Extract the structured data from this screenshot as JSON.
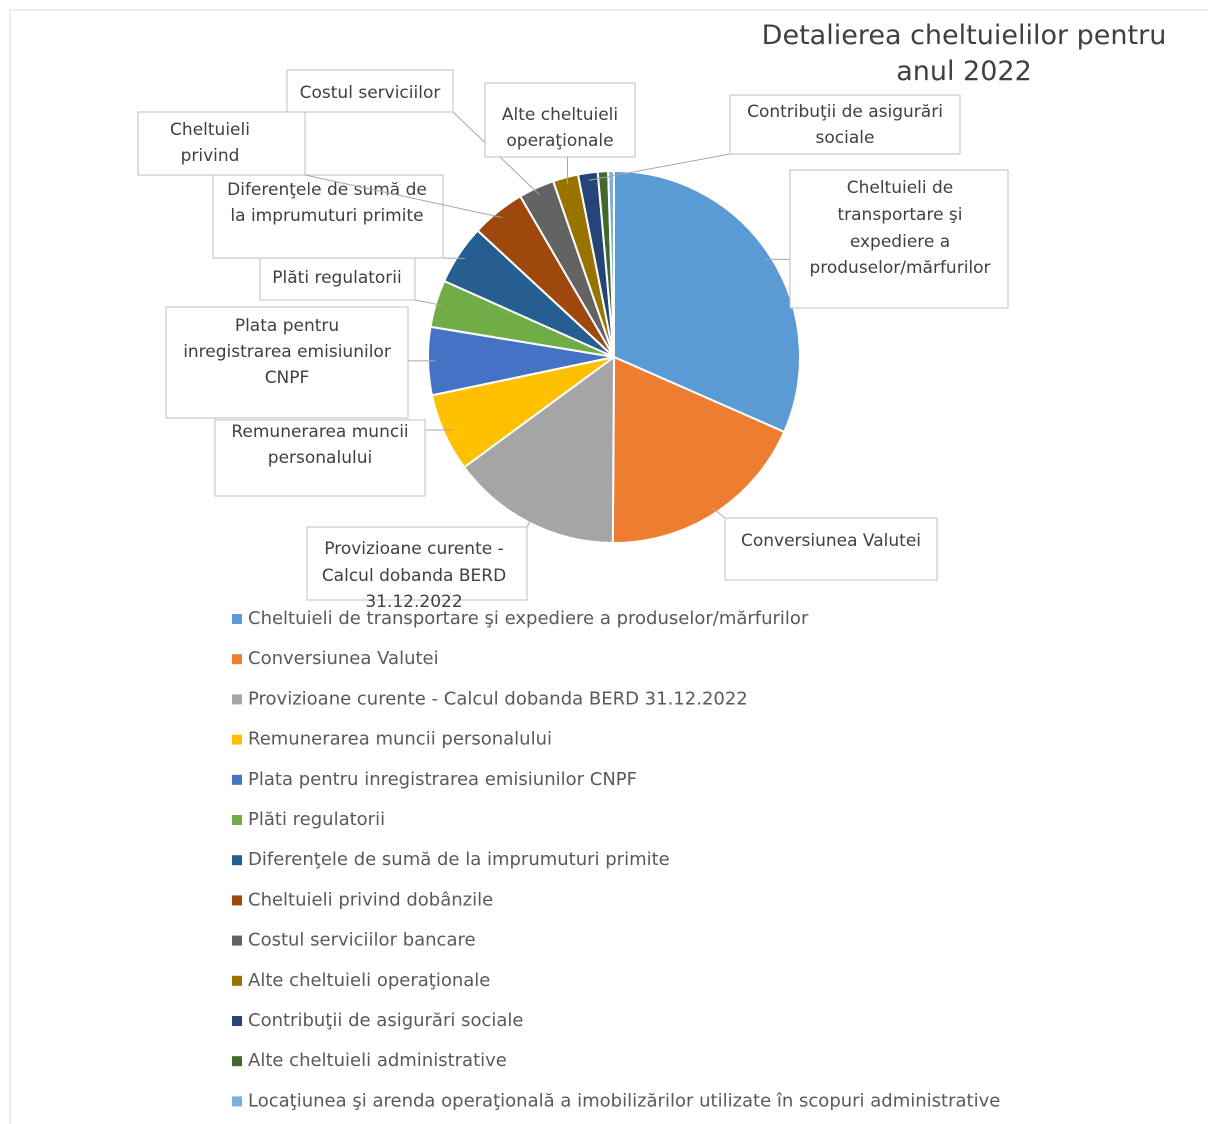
{
  "chart_data": {
    "type": "pie",
    "title": "Detalierea cheltuielilor pentru anul 2022",
    "categories": [
      "Cheltuieli de transportare şi expediere a produselor/mărfurilor",
      "Conversiunea Valutei",
      "Provizioane curente - Calcul dobanda BERD 31.12.2022",
      "Remunerarea muncii personalului",
      "Plata pentru inregistrarea emisiunilor CNPF",
      "Plăti regulatorii",
      "Diferenţele de sumă de la imprumuturi primite",
      "Cheltuieli privind dobânzile",
      "Costul serviciilor bancare",
      "Alte cheltuieli operaţionale",
      "Contribuţii de asigurări sociale",
      "Alte cheltuieli administrative",
      "Locaţiunea şi arenda operaţională a imobilizărilor utilizate în scopuri administrative"
    ],
    "values": [
      31.6,
      18.5,
      14.8,
      6.8,
      5.9,
      4.1,
      5.2,
      4.7,
      3.1,
      2.2,
      1.7,
      0.9,
      0.5
    ],
    "colors": [
      "#5b9bd5",
      "#ed7d31",
      "#a5a5a5",
      "#ffc000",
      "#4472c4",
      "#70ad47",
      "#255e91",
      "#9e480e",
      "#636363",
      "#997300",
      "#264478",
      "#43682b",
      "#7cafdd"
    ],
    "data_labels": [
      [
        "Cheltuieli de",
        "transportare şi",
        "expediere a",
        "produselor/mărfurilor"
      ],
      [
        "Conversiunea Valutei"
      ],
      [
        "Provizioane curente -",
        "Calcul dobanda BERD",
        "31.12.2022"
      ],
      [
        "Remunerarea muncii",
        "personalului"
      ],
      [
        "Plata pentru",
        "inregistrarea emisiunilor",
        "CNPF"
      ],
      [
        "Plăti regulatorii"
      ],
      [
        "Diferenţele de sumă de",
        "la imprumuturi primite"
      ],
      [
        "Cheltuieli",
        "privind"
      ],
      [
        "Costul serviciilor"
      ],
      [
        "Alte cheltuieli",
        "operaţionale"
      ],
      [
        "Contribuţii de asigurări",
        "sociale"
      ],
      null,
      null
    ],
    "legend": "bottom"
  }
}
